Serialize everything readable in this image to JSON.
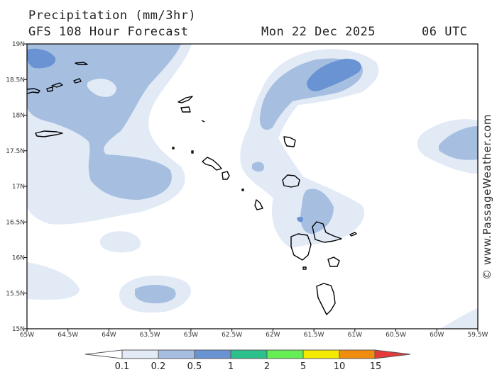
{
  "header": {
    "title": "Precipitation (mm/3hr)",
    "model": "GFS 108 Hour Forecast",
    "date": "Mon 22 Dec 2025",
    "time": "06 UTC"
  },
  "map": {
    "lon_labels": [
      "65W",
      "64.5W",
      "64W",
      "63.5W",
      "63W",
      "62.5W",
      "62W",
      "61.5W",
      "61W",
      "60.5W",
      "60W",
      "59.5W"
    ],
    "lat_labels": [
      "19N",
      "18.5N",
      "18N",
      "17.5N",
      "17N",
      "16.5N",
      "16N",
      "15.5N",
      "15N"
    ],
    "lon_range": [
      -65,
      -59.5
    ],
    "lat_range": [
      15,
      19
    ],
    "colors": {
      "land_outline": "#000000",
      "rain_0_1": "#e2eaf6",
      "rain_0_2": "#a6bfe1",
      "rain_0_5": "#6a93d3"
    }
  },
  "legend": {
    "labels": [
      "0.1",
      "0.2",
      "0.5",
      "1",
      "2",
      "5",
      "10",
      "15"
    ],
    "colors": [
      "#e2eaf6",
      "#a6bfe1",
      "#6a93d3",
      "#2cc08c",
      "#66ee55",
      "#f4ea00",
      "#f08c10",
      "#e63a3a"
    ]
  },
  "watermark": "© www.PassageWeather.com"
}
